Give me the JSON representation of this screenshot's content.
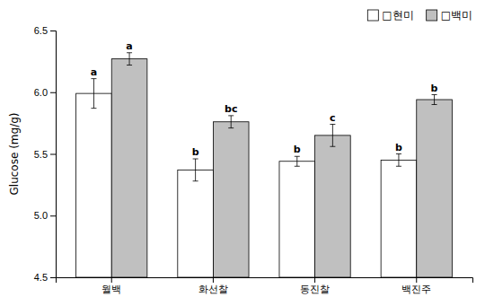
{
  "chart_data": {
    "type": "bar",
    "categories": [
      "월백",
      "화선찰",
      "동진찰",
      "백진주"
    ],
    "series": [
      {
        "name": "□현미",
        "color": "#ffffff",
        "values": [
          5.99,
          5.37,
          5.44,
          5.45
        ],
        "errors": [
          0.12,
          0.09,
          0.04,
          0.05
        ],
        "annotations": [
          "a",
          "b",
          "b",
          "b"
        ]
      },
      {
        "name": "□백미",
        "color": "#c0c0c0",
        "values": [
          6.27,
          5.76,
          5.65,
          5.94
        ],
        "errors": [
          0.05,
          0.05,
          0.09,
          0.04
        ],
        "annotations": [
          "a",
          "bc",
          "c",
          "b"
        ]
      }
    ],
    "ylabel": "Glucose (mg/g)",
    "ylim": [
      4.5,
      6.5
    ],
    "yticks": [
      4.5,
      {
        "value": 5.0,
        "label": "5.0"
      },
      5.5,
      {
        "value": 6.0,
        "label": "6.0"
      },
      6.5
    ],
    "legend": "upper right",
    "grid": false
  }
}
